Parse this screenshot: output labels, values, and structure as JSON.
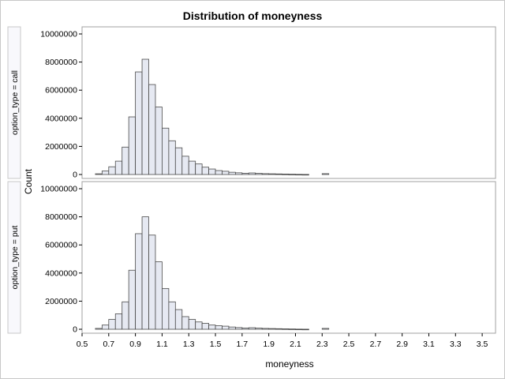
{
  "chart_data": {
    "type": "bar",
    "title": "Distribution of moneyness",
    "xlabel": "moneyness",
    "ylabel": "Count",
    "xlim": [
      0.5,
      3.6
    ],
    "xticks": [
      "0.5",
      "0.7",
      "0.9",
      "1.1",
      "1.3",
      "1.5",
      "1.7",
      "1.9",
      "2.1",
      "2.3",
      "2.5",
      "2.7",
      "2.9",
      "3.1",
      "3.3",
      "3.5"
    ],
    "ylim": [
      0,
      10000000
    ],
    "yticks": [
      "0",
      "2000000",
      "4000000",
      "6000000",
      "8000000",
      "10000000"
    ],
    "bin_width": 0.05,
    "bin_start": 0.6,
    "grid": false,
    "bar_color": "#e6e9f2",
    "bar_outline": "#4a4a4a",
    "panels": [
      {
        "label": "option_type = call",
        "values": [
          50000,
          250000,
          550000,
          950000,
          1950000,
          4100000,
          7300000,
          8200000,
          6400000,
          4800000,
          3300000,
          2400000,
          1900000,
          1300000,
          950000,
          750000,
          520000,
          390000,
          280000,
          230000,
          160000,
          120000,
          90000,
          110000,
          80000,
          60000,
          50000,
          40000,
          30000,
          20000,
          10000,
          5000,
          0,
          0,
          60000
        ]
      },
      {
        "label": "option_type = put",
        "values": [
          60000,
          300000,
          700000,
          1100000,
          1950000,
          4200000,
          6800000,
          8000000,
          6700000,
          4800000,
          2900000,
          1950000,
          1400000,
          900000,
          700000,
          520000,
          420000,
          300000,
          250000,
          220000,
          160000,
          120000,
          90000,
          110000,
          80000,
          60000,
          50000,
          40000,
          30000,
          20000,
          10000,
          5000,
          0,
          0,
          60000
        ]
      }
    ]
  }
}
